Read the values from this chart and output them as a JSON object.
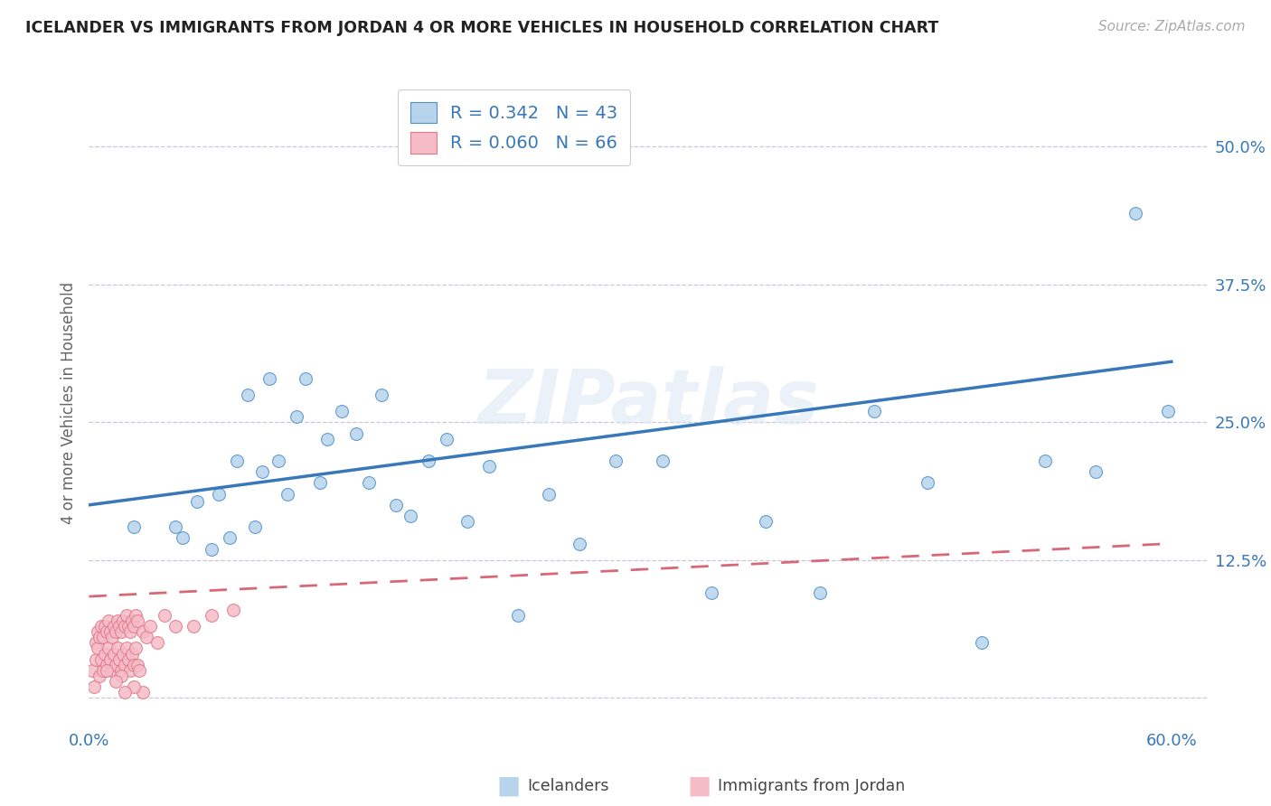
{
  "title": "ICELANDER VS IMMIGRANTS FROM JORDAN 4 OR MORE VEHICLES IN HOUSEHOLD CORRELATION CHART",
  "source": "Source: ZipAtlas.com",
  "ylabel": "4 or more Vehicles in Household",
  "xlim": [
    0.0,
    0.62
  ],
  "ylim": [
    -0.025,
    0.56
  ],
  "plot_xlim": [
    0.0,
    0.6
  ],
  "ytick_positions": [
    0.0,
    0.125,
    0.25,
    0.375,
    0.5
  ],
  "ytick_labels_right": [
    "",
    "12.5%",
    "25.0%",
    "37.5%",
    "50.0%"
  ],
  "xtick_positions": [
    0.0,
    0.1,
    0.2,
    0.3,
    0.4,
    0.5,
    0.6
  ],
  "xtick_labels": [
    "0.0%",
    "",
    "",
    "",
    "",
    "",
    "60.0%"
  ],
  "r_icelander": 0.342,
  "n_icelander": 43,
  "r_jordan": 0.06,
  "n_jordan": 66,
  "color_icelander_face": "#b8d4ed",
  "color_icelander_edge": "#5090c8",
  "color_jordan_face": "#f5bcc8",
  "color_jordan_edge": "#e07888",
  "line_color_icelander": "#3878b8",
  "line_color_jordan": "#d86878",
  "watermark": "ZIPatlas",
  "legend_label_i": "Icelanders",
  "legend_label_j": "Immigrants from Jordan",
  "icelander_x": [
    0.025,
    0.048,
    0.052,
    0.06,
    0.068,
    0.072,
    0.078,
    0.082,
    0.088,
    0.092,
    0.096,
    0.1,
    0.105,
    0.11,
    0.115,
    0.12,
    0.128,
    0.132,
    0.14,
    0.148,
    0.155,
    0.162,
    0.17,
    0.178,
    0.188,
    0.198,
    0.21,
    0.222,
    0.238,
    0.255,
    0.272,
    0.292,
    0.318,
    0.345,
    0.375,
    0.405,
    0.435,
    0.465,
    0.495,
    0.53,
    0.558,
    0.58,
    0.598
  ],
  "icelander_y": [
    0.155,
    0.155,
    0.145,
    0.178,
    0.135,
    0.185,
    0.145,
    0.215,
    0.275,
    0.155,
    0.205,
    0.29,
    0.215,
    0.185,
    0.255,
    0.29,
    0.195,
    0.235,
    0.26,
    0.24,
    0.195,
    0.275,
    0.175,
    0.165,
    0.215,
    0.235,
    0.16,
    0.21,
    0.075,
    0.185,
    0.14,
    0.215,
    0.215,
    0.095,
    0.16,
    0.095,
    0.26,
    0.195,
    0.05,
    0.215,
    0.205,
    0.44,
    0.26
  ],
  "jordan_x": [
    0.002,
    0.003,
    0.004,
    0.004,
    0.005,
    0.005,
    0.006,
    0.006,
    0.007,
    0.007,
    0.008,
    0.008,
    0.009,
    0.009,
    0.01,
    0.01,
    0.011,
    0.011,
    0.012,
    0.012,
    0.013,
    0.013,
    0.014,
    0.014,
    0.015,
    0.015,
    0.016,
    0.016,
    0.017,
    0.017,
    0.018,
    0.018,
    0.019,
    0.019,
    0.02,
    0.02,
    0.021,
    0.021,
    0.022,
    0.022,
    0.023,
    0.023,
    0.024,
    0.024,
    0.025,
    0.025,
    0.026,
    0.026,
    0.027,
    0.027,
    0.028,
    0.03,
    0.032,
    0.034,
    0.038,
    0.042,
    0.048,
    0.058,
    0.068,
    0.08,
    0.03,
    0.025,
    0.02,
    0.018,
    0.015,
    0.01
  ],
  "jordan_y": [
    0.025,
    0.01,
    0.035,
    0.05,
    0.045,
    0.06,
    0.02,
    0.055,
    0.035,
    0.065,
    0.025,
    0.055,
    0.04,
    0.065,
    0.03,
    0.06,
    0.045,
    0.07,
    0.035,
    0.06,
    0.025,
    0.055,
    0.04,
    0.065,
    0.03,
    0.06,
    0.045,
    0.07,
    0.035,
    0.065,
    0.025,
    0.06,
    0.04,
    0.07,
    0.03,
    0.065,
    0.045,
    0.075,
    0.035,
    0.065,
    0.025,
    0.06,
    0.04,
    0.07,
    0.03,
    0.065,
    0.045,
    0.075,
    0.03,
    0.07,
    0.025,
    0.06,
    0.055,
    0.065,
    0.05,
    0.075,
    0.065,
    0.065,
    0.075,
    0.08,
    0.005,
    0.01,
    0.005,
    0.02,
    0.015,
    0.025
  ],
  "line_i_x0": 0.0,
  "line_i_y0": 0.175,
  "line_i_x1": 0.6,
  "line_i_y1": 0.305,
  "line_j_x0": 0.0,
  "line_j_y0": 0.092,
  "line_j_x1": 0.6,
  "line_j_y1": 0.14
}
